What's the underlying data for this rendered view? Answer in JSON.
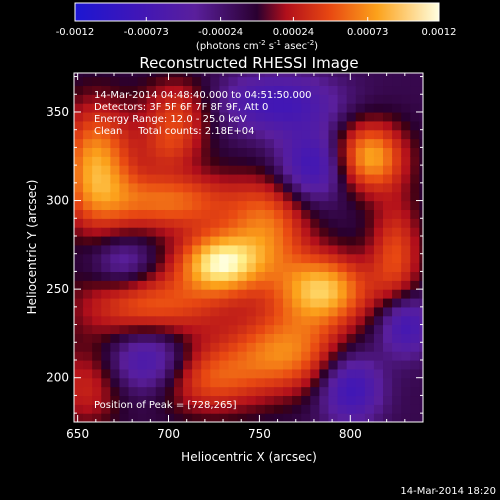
{
  "chart_data": {
    "type": "heatmap",
    "title": "Reconstructed RHESSI Image",
    "xlabel": "Heliocentric X (arcsec)",
    "ylabel": "Heliocentric Y (arcsec)",
    "xlim": [
      648,
      840
    ],
    "ylim": [
      175,
      372
    ],
    "x_ticks": [
      "650",
      "700",
      "750",
      "800"
    ],
    "y_ticks": [
      "200",
      "250",
      "300",
      "350"
    ],
    "colorbar": {
      "range": [
        -0.0012,
        0.0012
      ],
      "tick_labels": [
        "-0.0012",
        "-0.00073",
        "-0.00024",
        "0.00024",
        "0.00073",
        "0.0012"
      ],
      "unit_prefix": "(photons cm",
      "unit_exp1": "-2",
      "unit_mid": " s",
      "unit_exp2": "-1",
      "unit_mid2": " asec",
      "unit_exp3": "-2",
      "unit_suffix": ")"
    },
    "annotations": [
      "14-Mar-2014 04:48:40.000 to 04:51:50.000",
      "Detectors: 3F 5F 6F 7F 8F 9F, Att 0",
      "Energy Range: 12.0 - 25.0 keV",
      "Clean     Total counts: 2.18E+04"
    ],
    "peak_label": "Position of Peak = [728,265]",
    "peak_position": [
      728,
      265
    ],
    "features": [
      {
        "x": 728,
        "y": 265,
        "rx": 16,
        "ry": 12,
        "value": 0.00118
      },
      {
        "x": 785,
        "y": 250,
        "rx": 18,
        "ry": 14,
        "value": 0.00105
      },
      {
        "x": 660,
        "y": 320,
        "rx": 14,
        "ry": 24,
        "value": 0.00095
      },
      {
        "x": 810,
        "y": 325,
        "rx": 14,
        "ry": 14,
        "value": 0.001
      },
      {
        "x": 700,
        "y": 300,
        "rx": 26,
        "ry": 12,
        "value": 0.00075
      },
      {
        "x": 755,
        "y": 285,
        "rx": 16,
        "ry": 20,
        "value": 0.00072
      },
      {
        "x": 690,
        "y": 240,
        "rx": 28,
        "ry": 14,
        "value": 0.0007
      },
      {
        "x": 765,
        "y": 215,
        "rx": 22,
        "ry": 16,
        "value": 0.0008
      },
      {
        "x": 720,
        "y": 200,
        "rx": 22,
        "ry": 14,
        "value": 0.00065
      },
      {
        "x": 825,
        "y": 270,
        "rx": 10,
        "ry": 22,
        "value": 0.0006
      },
      {
        "x": 705,
        "y": 350,
        "rx": 14,
        "ry": 14,
        "value": 0.00055
      },
      {
        "x": 655,
        "y": 195,
        "rx": 14,
        "ry": 16,
        "value": 0.00045
      },
      {
        "x": 700,
        "y": 330,
        "rx": 12,
        "ry": 10,
        "value": 0.00035
      },
      {
        "x": 760,
        "y": 355,
        "rx": 24,
        "ry": 12,
        "value": -0.0006
      },
      {
        "x": 780,
        "y": 320,
        "rx": 14,
        "ry": 14,
        "value": -0.0007
      },
      {
        "x": 690,
        "y": 210,
        "rx": 16,
        "ry": 14,
        "value": -0.0007
      },
      {
        "x": 800,
        "y": 195,
        "rx": 12,
        "ry": 14,
        "value": -0.0007
      },
      {
        "x": 830,
        "y": 230,
        "rx": 10,
        "ry": 12,
        "value": -0.00065
      },
      {
        "x": 675,
        "y": 265,
        "rx": 12,
        "ry": 10,
        "value": -0.0004
      }
    ]
  },
  "footer_date": "14-Mar-2014 18:20"
}
